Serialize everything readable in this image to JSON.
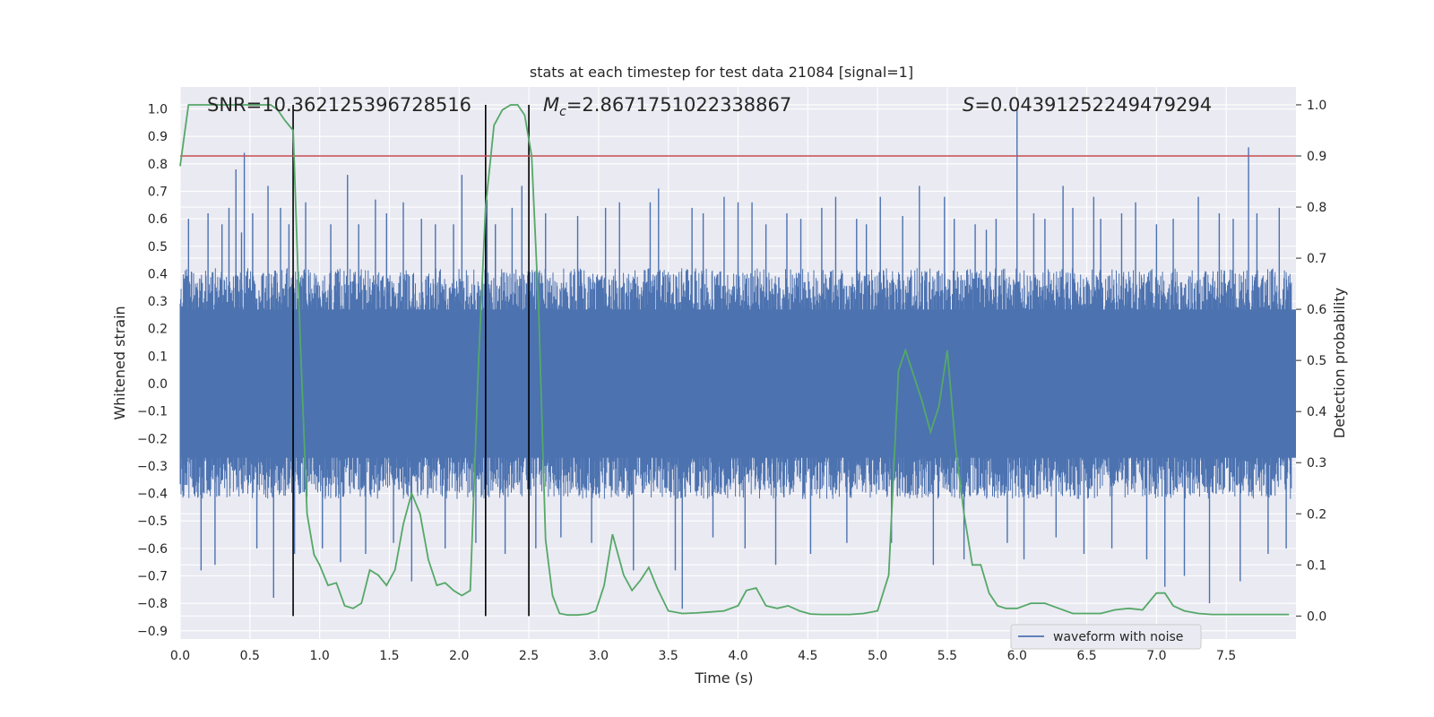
{
  "chart_data": {
    "type": "line",
    "title": "stats at each timestep for test data 21084 [signal=1]",
    "xlabel": "Time (s)",
    "ylabel_left": "Whitened strain",
    "ylabel_right": "Detection probability",
    "xlim": [
      0.0,
      8.0
    ],
    "ylim_left": [
      -0.93,
      1.08
    ],
    "ylim_right": [
      -0.045,
      1.035
    ],
    "x_ticks": [
      "0.0",
      "0.5",
      "1.0",
      "1.5",
      "2.0",
      "2.5",
      "3.0",
      "3.5",
      "4.0",
      "4.5",
      "5.0",
      "5.5",
      "6.0",
      "6.5",
      "7.0",
      "7.5"
    ],
    "y_ticks_left": [
      "1.0",
      "0.9",
      "0.8",
      "0.7",
      "0.6",
      "0.5",
      "0.4",
      "0.3",
      "0.2",
      "0.1",
      "0.0",
      "−0.1",
      "−0.2",
      "−0.3",
      "−0.4",
      "−0.5",
      "−0.6",
      "−0.7",
      "−0.8",
      "−0.9"
    ],
    "y_ticks_right": [
      "1.0",
      "0.9",
      "0.8",
      "0.7",
      "0.6",
      "0.5",
      "0.4",
      "0.3",
      "0.2",
      "0.1",
      "0.0"
    ],
    "annotations": {
      "snr": "SNR=10.362125396728516",
      "mc_symbol": "M",
      "mc_sub": "c",
      "mc_value": "=2.8671751022338867",
      "s_symbol": "S",
      "s_value": "=0.04391252249479294"
    },
    "threshold": {
      "value": 0.9,
      "axis": "right",
      "color": "#c44e52"
    },
    "vertical_markers": [
      0.81,
      2.19,
      2.5
    ],
    "legend": {
      "position": "lower-right",
      "entries": [
        "waveform with noise"
      ]
    },
    "grid": true,
    "series": [
      {
        "name": "waveform with noise",
        "axis": "left",
        "color": "#4c72b0",
        "description_band": [
          -0.42,
          0.42
        ],
        "spikes": [
          [
            0.06,
            0.6
          ],
          [
            0.15,
            -0.68
          ],
          [
            0.2,
            0.62
          ],
          [
            0.25,
            -0.66
          ],
          [
            0.3,
            0.58
          ],
          [
            0.35,
            0.64
          ],
          [
            0.4,
            0.78
          ],
          [
            0.44,
            0.55
          ],
          [
            0.46,
            0.84
          ],
          [
            0.52,
            0.62
          ],
          [
            0.55,
            -0.6
          ],
          [
            0.63,
            0.72
          ],
          [
            0.67,
            -0.78
          ],
          [
            0.72,
            0.64
          ],
          [
            0.78,
            0.58
          ],
          [
            0.82,
            -0.62
          ],
          [
            0.9,
            0.66
          ],
          [
            1.02,
            -0.6
          ],
          [
            1.08,
            0.58
          ],
          [
            1.15,
            -0.65
          ],
          [
            1.2,
            0.76
          ],
          [
            1.28,
            0.58
          ],
          [
            1.33,
            -0.62
          ],
          [
            1.4,
            0.67
          ],
          [
            1.48,
            0.62
          ],
          [
            1.53,
            -0.58
          ],
          [
            1.6,
            0.66
          ],
          [
            1.66,
            -0.72
          ],
          [
            1.73,
            0.6
          ],
          [
            1.83,
            0.58
          ],
          [
            1.9,
            -0.6
          ],
          [
            1.96,
            0.58
          ],
          [
            2.02,
            0.76
          ],
          [
            2.12,
            -0.58
          ],
          [
            2.2,
            0.67
          ],
          [
            2.26,
            0.58
          ],
          [
            2.33,
            -0.62
          ],
          [
            2.38,
            0.64
          ],
          [
            2.45,
            0.72
          ],
          [
            2.55,
            -0.6
          ],
          [
            2.62,
            0.62
          ],
          [
            2.73,
            -0.56
          ],
          [
            2.85,
            0.61
          ],
          [
            2.95,
            -0.58
          ],
          [
            3.05,
            0.64
          ],
          [
            3.15,
            0.66
          ],
          [
            3.25,
            -0.68
          ],
          [
            3.37,
            0.66
          ],
          [
            3.43,
            0.71
          ],
          [
            3.55,
            -0.68
          ],
          [
            3.6,
            -0.82
          ],
          [
            3.67,
            0.64
          ],
          [
            3.75,
            0.62
          ],
          [
            3.82,
            -0.56
          ],
          [
            3.9,
            0.68
          ],
          [
            4.0,
            0.66
          ],
          [
            4.05,
            -0.6
          ],
          [
            4.1,
            0.66
          ],
          [
            4.2,
            0.58
          ],
          [
            4.27,
            -0.66
          ],
          [
            4.35,
            0.62
          ],
          [
            4.45,
            0.6
          ],
          [
            4.52,
            -0.62
          ],
          [
            4.6,
            0.64
          ],
          [
            4.7,
            0.68
          ],
          [
            4.78,
            -0.58
          ],
          [
            4.85,
            0.6
          ],
          [
            4.92,
            0.58
          ],
          [
            5.02,
            0.68
          ],
          [
            5.1,
            -0.58
          ],
          [
            5.18,
            0.61
          ],
          [
            5.3,
            0.72
          ],
          [
            5.4,
            -0.66
          ],
          [
            5.48,
            0.68
          ],
          [
            5.55,
            0.6
          ],
          [
            5.62,
            -0.64
          ],
          [
            5.7,
            0.58
          ],
          [
            5.78,
            0.56
          ],
          [
            5.85,
            0.6
          ],
          [
            5.93,
            -0.58
          ],
          [
            6.0,
            1.0
          ],
          [
            6.05,
            -0.64
          ],
          [
            6.12,
            0.62
          ],
          [
            6.2,
            0.6
          ],
          [
            6.28,
            -0.56
          ],
          [
            6.33,
            0.72
          ],
          [
            6.4,
            0.64
          ],
          [
            6.48,
            -0.62
          ],
          [
            6.55,
            0.68
          ],
          [
            6.6,
            0.6
          ],
          [
            6.68,
            -0.6
          ],
          [
            6.75,
            0.62
          ],
          [
            6.85,
            0.66
          ],
          [
            6.93,
            -0.64
          ],
          [
            7.0,
            0.58
          ],
          [
            7.06,
            -0.74
          ],
          [
            7.12,
            0.6
          ],
          [
            7.2,
            -0.7
          ],
          [
            7.3,
            0.68
          ],
          [
            7.38,
            -0.8
          ],
          [
            7.45,
            0.62
          ],
          [
            7.55,
            0.6
          ],
          [
            7.6,
            -0.72
          ],
          [
            7.66,
            0.86
          ],
          [
            7.72,
            0.62
          ],
          [
            7.8,
            -0.62
          ],
          [
            7.88,
            0.64
          ],
          [
            7.93,
            -0.6
          ]
        ]
      },
      {
        "name": "",
        "axis": "right",
        "color": "#55a868",
        "x": [
          0.0,
          0.06,
          0.12,
          0.2,
          0.3,
          0.4,
          0.5,
          0.6,
          0.65,
          0.7,
          0.75,
          0.81,
          0.86,
          0.91,
          0.96,
          1.0,
          1.06,
          1.12,
          1.18,
          1.24,
          1.3,
          1.36,
          1.42,
          1.48,
          1.54,
          1.6,
          1.66,
          1.72,
          1.78,
          1.84,
          1.9,
          1.96,
          2.02,
          2.08,
          2.14,
          2.19,
          2.25,
          2.31,
          2.37,
          2.42,
          2.47,
          2.52,
          2.57,
          2.62,
          2.67,
          2.72,
          2.78,
          2.85,
          2.92,
          2.98,
          3.04,
          3.1,
          3.18,
          3.24,
          3.3,
          3.36,
          3.42,
          3.5,
          3.6,
          3.7,
          3.8,
          3.9,
          4.0,
          4.06,
          4.13,
          4.2,
          4.28,
          4.36,
          4.44,
          4.52,
          4.6,
          4.7,
          4.8,
          4.9,
          5.0,
          5.08,
          5.15,
          5.2,
          5.26,
          5.32,
          5.38,
          5.44,
          5.5,
          5.56,
          5.62,
          5.68,
          5.74,
          5.8,
          5.86,
          5.92,
          6.0,
          6.1,
          6.2,
          6.3,
          6.4,
          6.5,
          6.6,
          6.7,
          6.8,
          6.9,
          7.0,
          7.06,
          7.12,
          7.2,
          7.3,
          7.4,
          7.5,
          7.6,
          7.7,
          7.8,
          7.9,
          7.95
        ],
        "y": [
          0.88,
          1.0,
          1.0,
          1.0,
          1.0,
          1.0,
          1.0,
          1.0,
          1.0,
          0.99,
          0.97,
          0.95,
          0.55,
          0.2,
          0.12,
          0.1,
          0.06,
          0.065,
          0.02,
          0.015,
          0.025,
          0.09,
          0.08,
          0.06,
          0.09,
          0.18,
          0.24,
          0.2,
          0.11,
          0.06,
          0.065,
          0.05,
          0.04,
          0.05,
          0.5,
          0.8,
          0.96,
          0.99,
          1.0,
          1.0,
          0.98,
          0.9,
          0.6,
          0.15,
          0.04,
          0.005,
          0.002,
          0.002,
          0.004,
          0.01,
          0.06,
          0.16,
          0.08,
          0.05,
          0.07,
          0.095,
          0.055,
          0.01,
          0.005,
          0.006,
          0.008,
          0.01,
          0.02,
          0.05,
          0.055,
          0.02,
          0.015,
          0.02,
          0.01,
          0.004,
          0.003,
          0.003,
          0.003,
          0.005,
          0.01,
          0.08,
          0.48,
          0.52,
          0.47,
          0.42,
          0.36,
          0.41,
          0.52,
          0.33,
          0.2,
          0.1,
          0.1,
          0.045,
          0.02,
          0.015,
          0.015,
          0.025,
          0.025,
          0.015,
          0.005,
          0.005,
          0.005,
          0.012,
          0.015,
          0.012,
          0.045,
          0.045,
          0.02,
          0.01,
          0.005,
          0.003,
          0.003,
          0.003,
          0.003,
          0.003,
          0.003,
          0.003
        ]
      }
    ]
  },
  "legend_label": "waveform with noise"
}
